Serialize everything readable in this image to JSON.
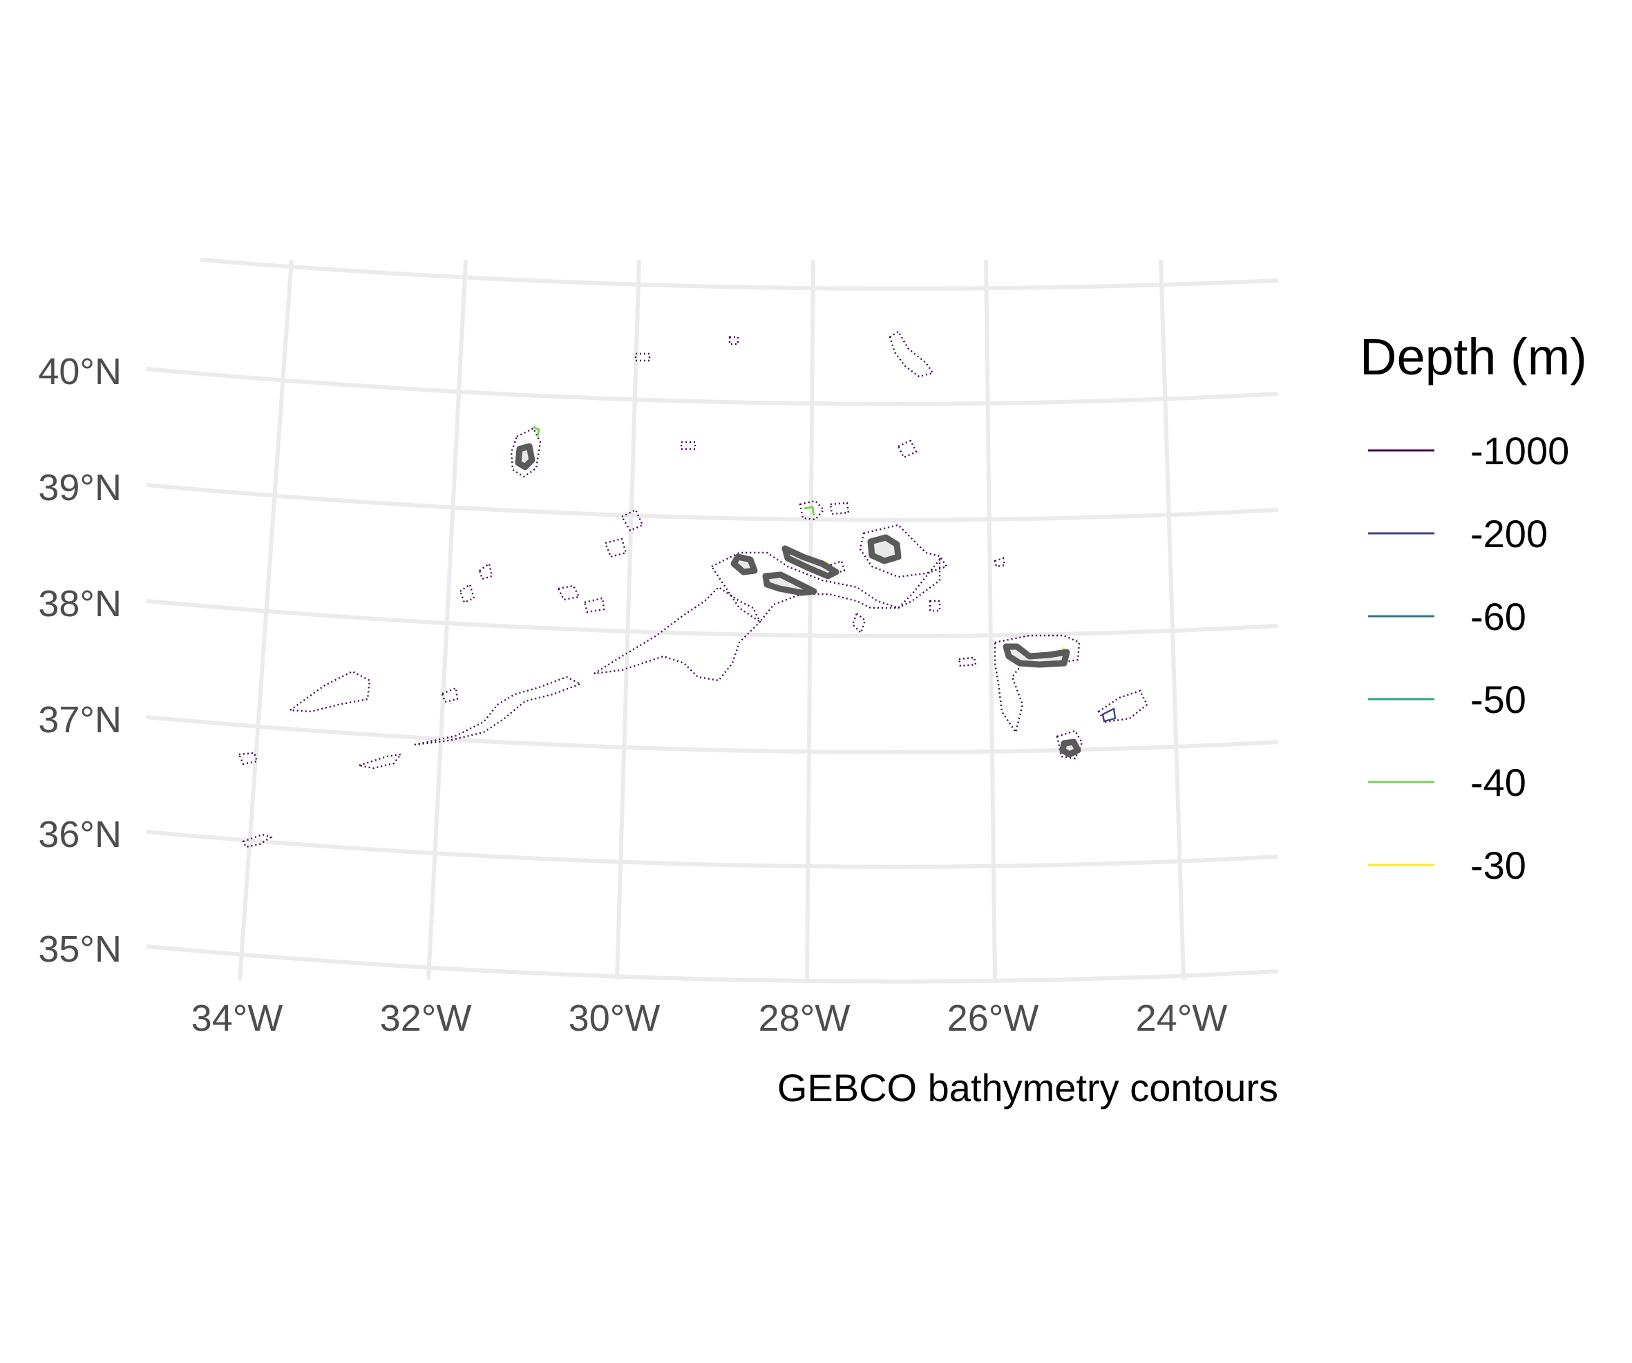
{
  "map": {
    "caption": "GEBCO bathymetry contours",
    "x_ticks": [
      "34°W",
      "32°W",
      "30°W",
      "28°W",
      "26°W",
      "24°W"
    ],
    "y_ticks": [
      "40°N",
      "39°N",
      "38°N",
      "37°N",
      "36°N",
      "35°N"
    ]
  },
  "legend": {
    "title": "Depth (m)",
    "items": [
      {
        "label": "-1000",
        "color": "#440154"
      },
      {
        "label": "-200",
        "color": "#414487"
      },
      {
        "label": "-60",
        "color": "#2a788e"
      },
      {
        "label": "-50",
        "color": "#22a884"
      },
      {
        "label": "-40",
        "color": "#7ad151"
      },
      {
        "label": "-30",
        "color": "#fde725"
      }
    ]
  }
}
